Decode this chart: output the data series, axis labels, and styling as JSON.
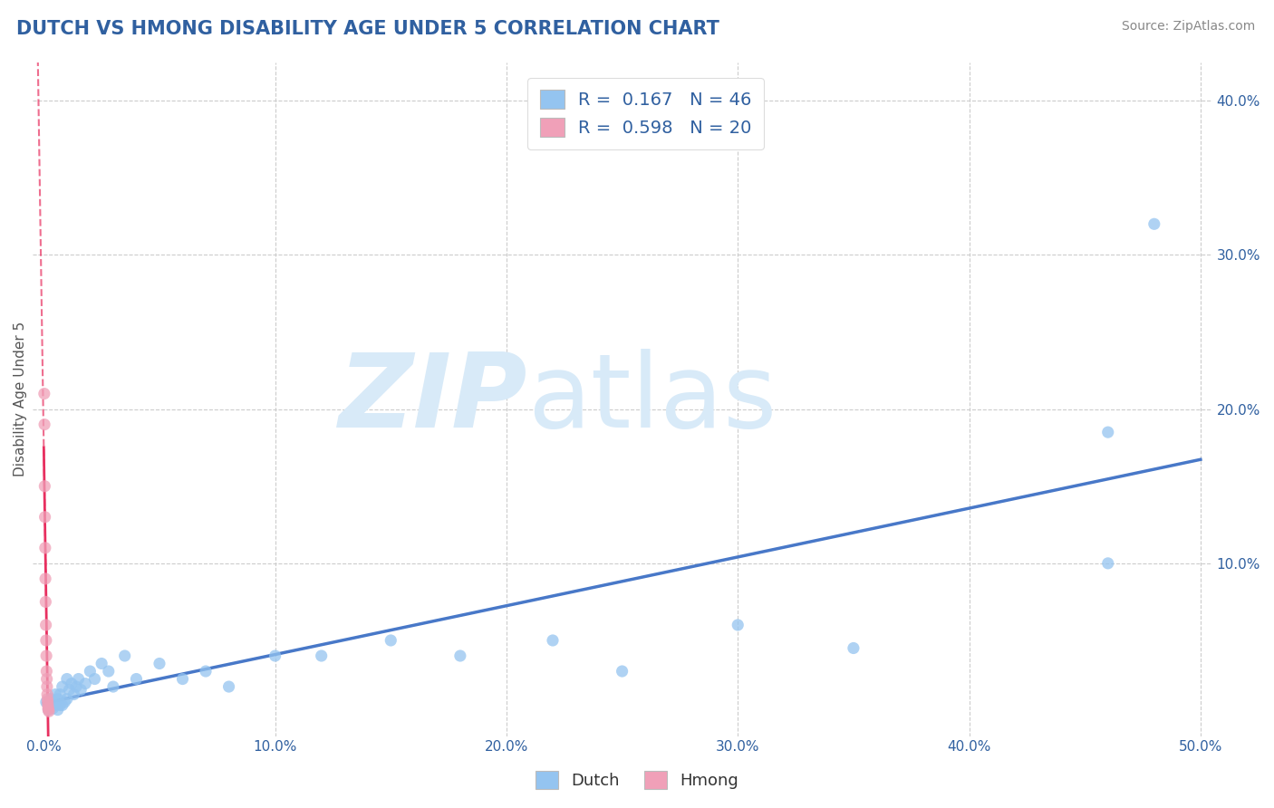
{
  "title": "DUTCH VS HMONG DISABILITY AGE UNDER 5 CORRELATION CHART",
  "source": "Source: ZipAtlas.com",
  "ylabel": "Disability Age Under 5",
  "xtick_labels": [
    "0.0%",
    "10.0%",
    "20.0%",
    "30.0%",
    "40.0%",
    "50.0%"
  ],
  "ytick_labels": [
    "",
    "10.0%",
    "20.0%",
    "30.0%",
    "40.0%"
  ],
  "dutch_R": 0.167,
  "dutch_N": 46,
  "hmong_R": 0.598,
  "hmong_N": 20,
  "dutch_color": "#94c4f0",
  "hmong_color": "#f0a0b8",
  "dutch_line_color": "#4878c8",
  "hmong_line_color": "#e83060",
  "background_color": "#ffffff",
  "grid_color": "#cccccc",
  "title_color": "#3060a0",
  "watermark_zip": "ZIP",
  "watermark_atlas": "atlas",
  "watermark_color": "#d8eaf8",
  "legend_text_color": "#3060a0",
  "source_color": "#888888",
  "ylabel_color": "#555555",
  "dutch_x": [
    0.001,
    0.002,
    0.003,
    0.003,
    0.004,
    0.004,
    0.005,
    0.005,
    0.006,
    0.006,
    0.007,
    0.007,
    0.008,
    0.008,
    0.009,
    0.01,
    0.01,
    0.011,
    0.012,
    0.013,
    0.014,
    0.015,
    0.016,
    0.018,
    0.02,
    0.022,
    0.025,
    0.028,
    0.03,
    0.035,
    0.04,
    0.05,
    0.06,
    0.07,
    0.08,
    0.1,
    0.12,
    0.15,
    0.18,
    0.22,
    0.25,
    0.3,
    0.35,
    0.46,
    0.46,
    0.48
  ],
  "dutch_y": [
    0.01,
    0.005,
    0.008,
    0.012,
    0.006,
    0.01,
    0.008,
    0.015,
    0.005,
    0.012,
    0.008,
    0.015,
    0.008,
    0.02,
    0.01,
    0.012,
    0.025,
    0.018,
    0.022,
    0.015,
    0.02,
    0.025,
    0.018,
    0.022,
    0.03,
    0.025,
    0.035,
    0.03,
    0.02,
    0.04,
    0.025,
    0.035,
    0.025,
    0.03,
    0.02,
    0.04,
    0.04,
    0.05,
    0.04,
    0.05,
    0.03,
    0.06,
    0.045,
    0.1,
    0.185,
    0.32
  ],
  "hmong_x": [
    0.0002,
    0.0003,
    0.0004,
    0.0005,
    0.0006,
    0.0007,
    0.0008,
    0.0009,
    0.001,
    0.0011,
    0.0012,
    0.0013,
    0.0014,
    0.0015,
    0.0016,
    0.0017,
    0.0018,
    0.0019,
    0.002,
    0.0022
  ],
  "hmong_y": [
    0.21,
    0.19,
    0.15,
    0.13,
    0.11,
    0.09,
    0.075,
    0.06,
    0.05,
    0.04,
    0.03,
    0.025,
    0.02,
    0.015,
    0.012,
    0.01,
    0.008,
    0.006,
    0.005,
    0.004
  ],
  "xlim": [
    -0.005,
    0.505
  ],
  "ylim": [
    -0.012,
    0.425
  ],
  "xticks": [
    0.0,
    0.1,
    0.2,
    0.3,
    0.4,
    0.5
  ],
  "yticks": [
    0.0,
    0.1,
    0.2,
    0.3,
    0.4
  ]
}
